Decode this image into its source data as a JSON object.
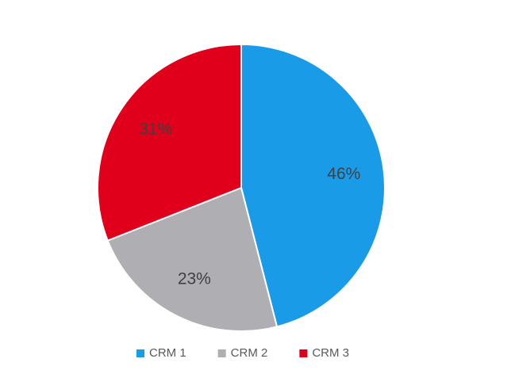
{
  "chart_data": {
    "type": "pie",
    "categories": [
      "CRM 1",
      "CRM 2",
      "CRM 3"
    ],
    "values": [
      46,
      23,
      31
    ],
    "value_labels": [
      "46%",
      "23%",
      "31%"
    ],
    "colors": [
      "#1a9be8",
      "#afafb3",
      "#e0001b"
    ],
    "legend": "bottom"
  }
}
